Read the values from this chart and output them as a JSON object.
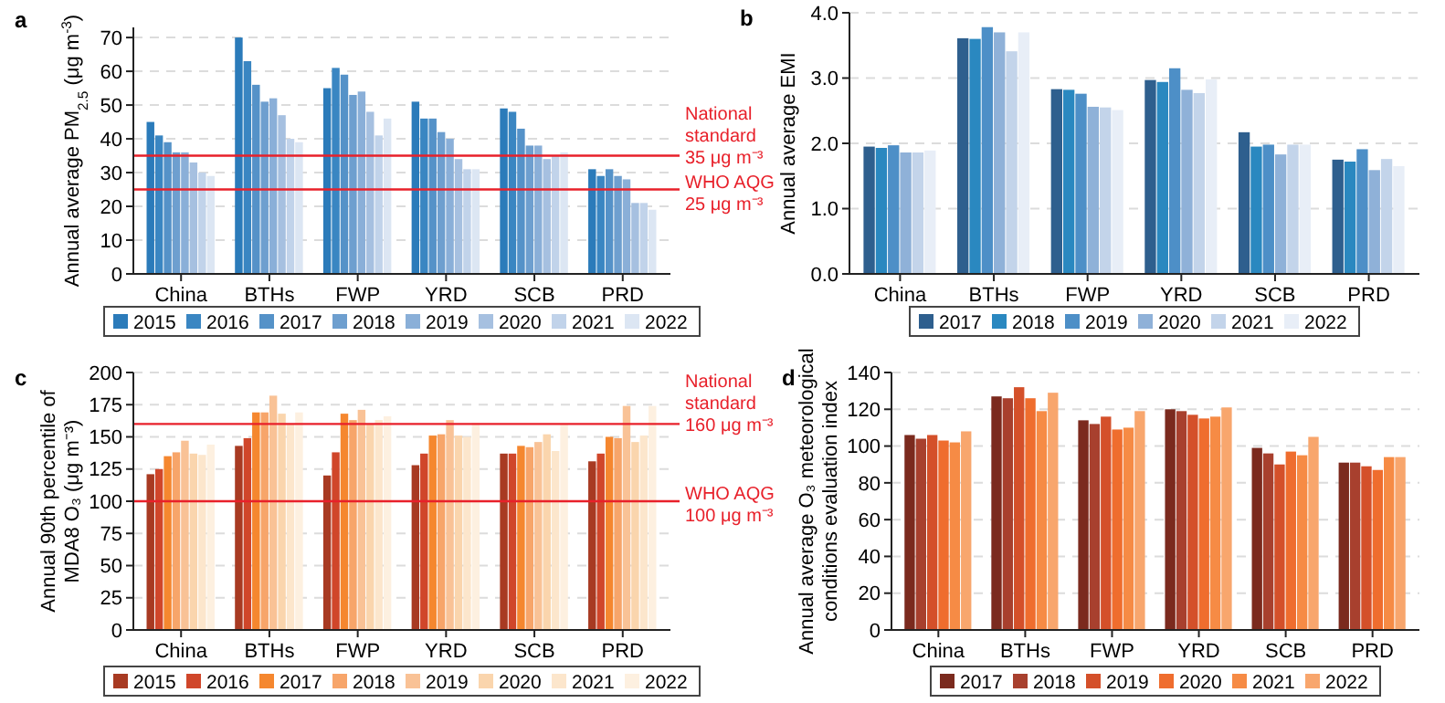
{
  "chart_data": [
    {
      "type": "bar",
      "title": "a",
      "ylabel": "Annual average PM$_{2.5}$ (μg m$^{-3}$)",
      "categories": [
        "China",
        "BTHs",
        "FWP",
        "YRD",
        "SCB",
        "PRD"
      ],
      "ylim": [
        0,
        73
      ],
      "yticks": [
        0,
        10,
        20,
        30,
        40,
        50,
        60,
        70
      ],
      "grid": "y",
      "legend": "bottom",
      "series": [
        {
          "name": "2015",
          "color": "#2b7bba",
          "values": [
            45,
            70,
            55,
            51,
            49,
            31
          ]
        },
        {
          "name": "2016",
          "color": "#3a86c2",
          "values": [
            41,
            63,
            61,
            46,
            48,
            29
          ]
        },
        {
          "name": "2017",
          "color": "#5592c8",
          "values": [
            39,
            56,
            59,
            46,
            43,
            31
          ]
        },
        {
          "name": "2018",
          "color": "#6e9fcf",
          "values": [
            36,
            51,
            53,
            42,
            38,
            29
          ]
        },
        {
          "name": "2019",
          "color": "#8aafd8",
          "values": [
            36,
            52,
            54,
            40,
            38,
            28
          ]
        },
        {
          "name": "2020",
          "color": "#a6c0e0",
          "values": [
            33,
            47,
            48,
            34,
            34,
            21
          ]
        },
        {
          "name": "2021",
          "color": "#c1d3ea",
          "values": [
            30,
            40,
            41,
            31,
            35,
            21
          ]
        },
        {
          "name": "2022",
          "color": "#dce6f3",
          "values": [
            29,
            39,
            46,
            31,
            36,
            19
          ]
        }
      ],
      "ref_lines": [
        {
          "axis": "y",
          "value": 35,
          "label": "National\nstandard\n35 μg m⁻³",
          "color": "#e8202a"
        },
        {
          "axis": "y",
          "value": 25,
          "label": "WHO AQG\n25 μg m⁻³",
          "color": "#e8202a"
        }
      ]
    },
    {
      "type": "bar",
      "title": "b",
      "ylabel": "Annual average EMI",
      "categories": [
        "China",
        "BTHs",
        "FWP",
        "YRD",
        "SCB",
        "PRD"
      ],
      "ylim": [
        0,
        4
      ],
      "yticks": [
        {
          "value": 0,
          "label": "0.0"
        },
        {
          "value": 1,
          "label": "1.0"
        },
        {
          "value": 2,
          "label": "2.0"
        },
        {
          "value": 3,
          "label": "3.0"
        },
        {
          "value": 4,
          "label": "4.0"
        }
      ],
      "grid": "y",
      "legend": "bottom",
      "series": [
        {
          "name": "2017",
          "color": "#2e5f8e",
          "values": [
            1.95,
            3.61,
            2.83,
            2.97,
            2.17,
            1.75
          ]
        },
        {
          "name": "2018",
          "color": "#2a88c0",
          "values": [
            1.93,
            3.6,
            2.82,
            2.94,
            1.95,
            1.72
          ]
        },
        {
          "name": "2019",
          "color": "#4d8fc7",
          "values": [
            1.97,
            3.78,
            2.76,
            3.15,
            1.98,
            1.91
          ]
        },
        {
          "name": "2020",
          "color": "#8fb1d8",
          "values": [
            1.86,
            3.7,
            2.56,
            2.82,
            1.83,
            1.59
          ]
        },
        {
          "name": "2021",
          "color": "#c3d4ea",
          "values": [
            1.86,
            3.41,
            2.55,
            2.77,
            1.98,
            1.76
          ]
        },
        {
          "name": "2022",
          "color": "#e8eef7",
          "values": [
            1.89,
            3.7,
            2.51,
            2.98,
            1.98,
            1.65
          ]
        }
      ]
    },
    {
      "type": "bar",
      "title": "c",
      "ylabel": "Annual 90th percentile of\nMDA8 O₃ (μg m⁻³)",
      "categories": [
        "China",
        "BTHs",
        "FWP",
        "YRD",
        "SCB",
        "PRD"
      ],
      "ylim": [
        0,
        200
      ],
      "yticks": [
        0,
        25,
        50,
        75,
        100,
        125,
        150,
        175,
        200
      ],
      "grid": "y",
      "legend": "bottom",
      "series": [
        {
          "name": "2015",
          "color": "#a83a22",
          "values": [
            121,
            143,
            120,
            128,
            137,
            131
          ]
        },
        {
          "name": "2016",
          "color": "#d0462a",
          "values": [
            125,
            149,
            138,
            137,
            137,
            137
          ]
        },
        {
          "name": "2017",
          "color": "#f5872f",
          "values": [
            135,
            169,
            168,
            151,
            143,
            150
          ]
        },
        {
          "name": "2018",
          "color": "#f7a56a",
          "values": [
            138,
            169,
            163,
            152,
            142,
            149
          ]
        },
        {
          "name": "2019",
          "color": "#f9c296",
          "values": [
            147,
            182,
            171,
            163,
            146,
            174
          ]
        },
        {
          "name": "2020",
          "color": "#fad5ad",
          "values": [
            137,
            168,
            160,
            151,
            152,
            146
          ]
        },
        {
          "name": "2021",
          "color": "#fce6cc",
          "values": [
            136,
            160,
            163,
            150,
            139,
            151
          ]
        },
        {
          "name": "2022",
          "color": "#fdf0e0",
          "values": [
            144,
            169,
            166,
            161,
            160,
            174
          ]
        }
      ],
      "ref_lines": [
        {
          "axis": "y",
          "value": 160,
          "label": "National\nstandard\n160 μg m⁻³",
          "color": "#e8202a"
        },
        {
          "axis": "y",
          "value": 100,
          "label": "WHO AQG\n100 μg m⁻³",
          "color": "#e8202a"
        }
      ]
    },
    {
      "type": "bar",
      "title": "d",
      "ylabel": "Annual average O₃ meteorological\nconditions evaluation index",
      "categories": [
        "China",
        "BTHs",
        "FWP",
        "YRD",
        "SCB",
        "PRD"
      ],
      "ylim": [
        0,
        140
      ],
      "yticks": [
        0,
        20,
        40,
        60,
        80,
        100,
        120,
        140
      ],
      "grid": "y",
      "legend": "bottom",
      "series": [
        {
          "name": "2017",
          "color": "#7b2a1e",
          "values": [
            106,
            127,
            114,
            120,
            99,
            91
          ]
        },
        {
          "name": "2018",
          "color": "#a8402e",
          "values": [
            104,
            126,
            112,
            119,
            96,
            91
          ]
        },
        {
          "name": "2019",
          "color": "#d4502a",
          "values": [
            106,
            132,
            116,
            117,
            90,
            89
          ]
        },
        {
          "name": "2020",
          "color": "#ef6d2e",
          "values": [
            103,
            126,
            109,
            115,
            97,
            87
          ]
        },
        {
          "name": "2021",
          "color": "#f68b45",
          "values": [
            102,
            119,
            110,
            116,
            95,
            94
          ]
        },
        {
          "name": "2022",
          "color": "#f8a66d",
          "values": [
            108,
            129,
            119,
            121,
            105,
            94
          ]
        }
      ]
    }
  ]
}
